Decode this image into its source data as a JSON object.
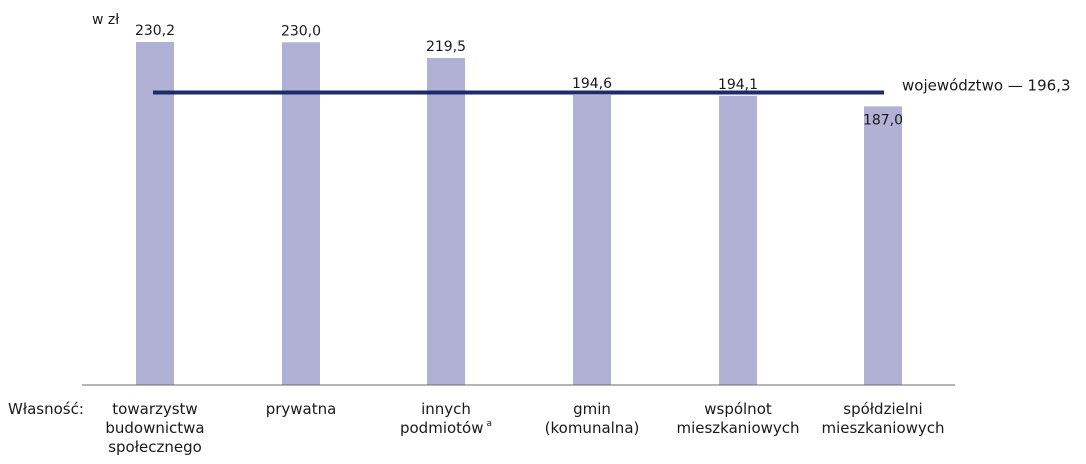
{
  "chart_data": {
    "type": "bar",
    "unit_label": "w zł",
    "axis_title": "Własność:",
    "categories": [
      [
        "towarzystw",
        "budownictwa",
        "społecznego"
      ],
      [
        "prywatna"
      ],
      [
        "innych",
        "podmiotów"
      ],
      [
        "gmin",
        "(komunalna)"
      ],
      [
        "wspólnot",
        "mieszkaniowych"
      ],
      [
        "spółdzielni",
        "mieszkaniowych"
      ]
    ],
    "category_footnote": {
      "index": 2,
      "mark": "a"
    },
    "values": [
      230.2,
      230.0,
      219.5,
      194.6,
      194.1,
      187.0
    ],
    "value_labels": [
      "230,2",
      "230,0",
      "219,5",
      "194,6",
      "194,1",
      "187,0"
    ],
    "reference_line": {
      "value": 196.3,
      "label": "województwo — 196,3"
    },
    "ylim": [
      0,
      230.2
    ],
    "colors": {
      "bar": "#b1b1d6",
      "reference_line": "#1d2a6b",
      "axis": "#6b6b6b"
    },
    "grid": false
  }
}
